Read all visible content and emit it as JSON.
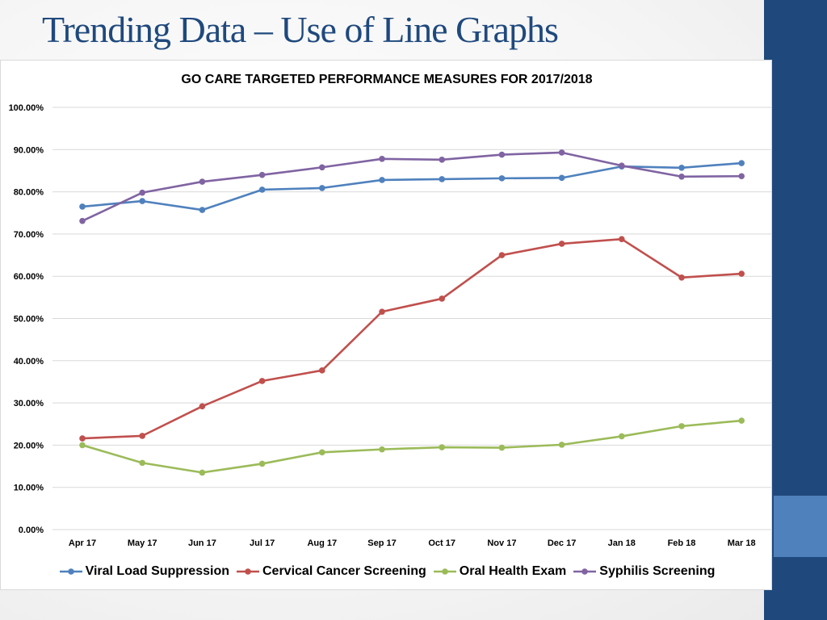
{
  "slide_title": "Trending Data – Use of Line Graphs",
  "colors": {
    "title": "#1f497d",
    "sidebar_dark": "#1f497d",
    "sidebar_light": "#4f81bd",
    "grid": "#d9d9d9"
  },
  "chart_data": {
    "type": "line",
    "title": "GO CARE TARGETED PERFORMANCE MEASURES FOR 2017/2018",
    "xlabel": "",
    "ylabel": "",
    "ylim": [
      0,
      1
    ],
    "yticks": [
      "0.00%",
      "10.00%",
      "20.00%",
      "30.00%",
      "40.00%",
      "50.00%",
      "60.00%",
      "70.00%",
      "80.00%",
      "90.00%",
      "100.00%"
    ],
    "categories": [
      "Apr 17",
      "May 17",
      "Jun 17",
      "Jul 17",
      "Aug 17",
      "Sep 17",
      "Oct 17",
      "Nov 17",
      "Dec 17",
      "Jan 18",
      "Feb 18",
      "Mar 18"
    ],
    "grid": true,
    "legend": "bottom",
    "series": [
      {
        "name": "Viral Load Suppression",
        "color": "#4f81bd",
        "values": [
          0.765,
          0.778,
          0.757,
          0.805,
          0.809,
          0.828,
          0.83,
          0.832,
          0.833,
          0.86,
          0.857,
          0.868
        ]
      },
      {
        "name": "Cervical Cancer Screening",
        "color": "#c0504d",
        "values": [
          0.216,
          0.222,
          0.292,
          0.352,
          0.377,
          0.516,
          0.547,
          0.65,
          0.677,
          0.688,
          0.597,
          0.606
        ]
      },
      {
        "name": "Oral Health Exam",
        "color": "#9bbb59",
        "values": [
          0.2,
          0.158,
          0.135,
          0.156,
          0.183,
          0.19,
          0.195,
          0.194,
          0.201,
          0.221,
          0.245,
          0.258
        ]
      },
      {
        "name": "Syphilis Screening",
        "color": "#8064a2",
        "values": [
          0.731,
          0.798,
          0.824,
          0.84,
          0.858,
          0.878,
          0.876,
          0.888,
          0.893,
          0.862,
          0.836,
          0.837
        ]
      }
    ]
  }
}
